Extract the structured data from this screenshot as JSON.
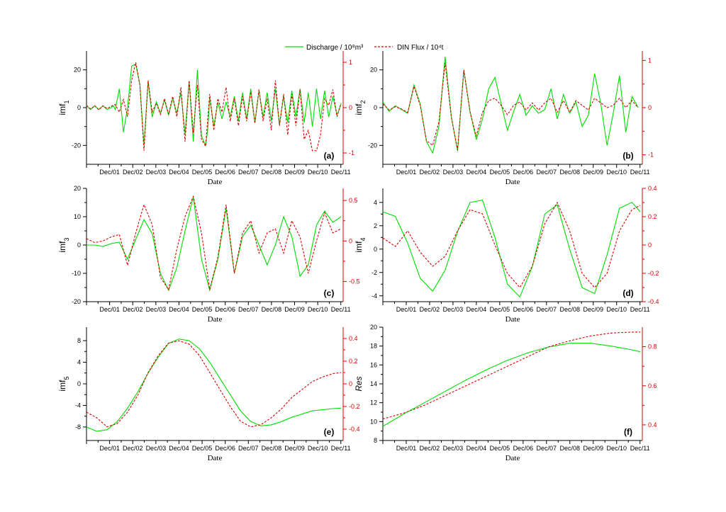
{
  "legend": {
    "discharge_label": "Discharge / 10⁸m³",
    "din_label": "DIN Flux / 10⁴t"
  },
  "colors": {
    "discharge": "#00dd00",
    "din": "#dd0000",
    "axis": "#000000"
  },
  "chart_data": [
    {
      "type": "line",
      "panel": "(a)",
      "ylabel": "imf₁",
      "xlabel": "Date",
      "x_ticks": [
        "Dec/01",
        "Dec/02",
        "Dec/03",
        "Dec/04",
        "Dec/05",
        "Dec/06",
        "Dec/07",
        "Dec/08",
        "Dec/09",
        "Dec/10",
        "Dec/11"
      ],
      "xlim": [
        0,
        125
      ],
      "ylim_left": [
        -30,
        30
      ],
      "ylim_right": [
        -1.25,
        1.25
      ],
      "yticks_left": [
        -20,
        0,
        20
      ],
      "yticks_right": [
        -1,
        0,
        1
      ],
      "series": [
        {
          "name": "Discharge / 10⁸m³",
          "axis": "left",
          "x": [
            0,
            2,
            4,
            6,
            8,
            10,
            12,
            13,
            14,
            16,
            18,
            20,
            22,
            24,
            26,
            28,
            30,
            32,
            34,
            36,
            38,
            40,
            42,
            44,
            46,
            48,
            50,
            52,
            54,
            56,
            58,
            59,
            60,
            62,
            64,
            66,
            68,
            70,
            72,
            74,
            76,
            78,
            80,
            82,
            84,
            86,
            88,
            90,
            92,
            94,
            96,
            98,
            100,
            102,
            104,
            106,
            108,
            110,
            112,
            114,
            116,
            118,
            120,
            122,
            124
          ],
          "y": [
            1,
            -1,
            1,
            -1,
            1,
            -1,
            0,
            1,
            -1,
            10,
            -13,
            0,
            22,
            23,
            12,
            -20,
            14,
            -5,
            3,
            -3,
            4,
            -4,
            5,
            -3,
            8,
            -14,
            14,
            -18,
            20,
            -15,
            -20,
            -12,
            5,
            -10,
            3,
            -6,
            3,
            -5,
            6,
            -7,
            8,
            -6,
            10,
            -8,
            9,
            -5,
            8,
            -7,
            10,
            -9,
            6,
            -8,
            9,
            -5,
            10,
            -8,
            8,
            -10,
            10,
            -6,
            9,
            -5,
            6,
            -4,
            2
          ]
        },
        {
          "name": "DIN Flux / 10⁴t",
          "axis": "right",
          "x": [
            0,
            2,
            4,
            6,
            8,
            10,
            12,
            14,
            16,
            18,
            20,
            22,
            24,
            26,
            28,
            30,
            32,
            34,
            36,
            38,
            40,
            42,
            44,
            46,
            48,
            50,
            52,
            54,
            56,
            58,
            60,
            62,
            64,
            66,
            68,
            70,
            72,
            74,
            76,
            78,
            80,
            82,
            84,
            86,
            88,
            90,
            92,
            94,
            96,
            98,
            100,
            102,
            104,
            106,
            108,
            110,
            112,
            114,
            116,
            118,
            120,
            122,
            124
          ],
          "y": [
            0.05,
            -0.03,
            0.04,
            -0.05,
            0.04,
            -0.02,
            0.03,
            0.07,
            -0.1,
            0.18,
            -0.2,
            0.6,
            1.0,
            0.5,
            -0.95,
            0.6,
            -0.1,
            0.1,
            -0.15,
            0.2,
            -0.15,
            0.25,
            -0.2,
            0.45,
            -0.75,
            0.6,
            -0.55,
            0.5,
            -0.7,
            -0.85,
            0.3,
            -0.5,
            0.2,
            -0.1,
            0.45,
            -0.3,
            0.2,
            -0.4,
            0.25,
            -0.3,
            0.35,
            -0.35,
            0.4,
            -0.3,
            0.2,
            -0.5,
            0.6,
            -0.4,
            0.3,
            -0.6,
            0.3,
            -0.4,
            0.4,
            -0.7,
            -0.5,
            -0.95,
            -0.95,
            -0.6,
            0.2,
            0.05,
            0.4,
            -0.2,
            0.1
          ]
        }
      ]
    },
    {
      "type": "line",
      "panel": "(b)",
      "ylabel": "imf₂",
      "xlabel": "Date",
      "x_ticks": [
        "Dec/01",
        "Dec/02",
        "Dec/03",
        "Dec/04",
        "Dec/05",
        "Dec/06",
        "Dec/07",
        "Dec/08",
        "Dec/09",
        "Dec/10",
        "Dec/11"
      ],
      "xlim": [
        0,
        125
      ],
      "ylim_left": [
        -30,
        30
      ],
      "ylim_right": [
        -1.2,
        1.2
      ],
      "yticks_left": [
        -20,
        0,
        20
      ],
      "yticks_right": [
        -1,
        0,
        1
      ],
      "series": [
        {
          "name": "Discharge / 10⁸m³",
          "axis": "left",
          "x": [
            0,
            3,
            6,
            9,
            12,
            15,
            18,
            21,
            24,
            27,
            30,
            33,
            36,
            39,
            42,
            45,
            48,
            51,
            54,
            57,
            60,
            63,
            66,
            69,
            72,
            75,
            78,
            81,
            84,
            87,
            90,
            93,
            96,
            99,
            102,
            105,
            108,
            111,
            114,
            117,
            120,
            123
          ],
          "y": [
            3,
            -2,
            1,
            -1,
            -3,
            12,
            2,
            -18,
            -24,
            -10,
            27,
            -5,
            -23,
            20,
            -2,
            -17,
            -6,
            10,
            16,
            2,
            -12,
            -2,
            7,
            -4,
            1,
            -3,
            -1,
            10,
            -6,
            7,
            -3,
            3,
            -10,
            -4,
            18,
            2,
            -20,
            -3,
            17,
            -13,
            6,
            0
          ]
        },
        {
          "name": "DIN Flux / 10⁴t",
          "axis": "right",
          "x": [
            0,
            3,
            6,
            9,
            12,
            15,
            18,
            21,
            24,
            27,
            30,
            33,
            36,
            39,
            42,
            45,
            48,
            51,
            54,
            57,
            60,
            63,
            66,
            69,
            72,
            75,
            78,
            81,
            84,
            87,
            90,
            93,
            96,
            99,
            102,
            105,
            108,
            111,
            114,
            117,
            120,
            123
          ],
          "y": [
            0.08,
            -0.05,
            0.02,
            -0.03,
            -0.1,
            0.45,
            0.05,
            -0.7,
            -0.8,
            -0.3,
            0.95,
            -0.2,
            -0.9,
            0.8,
            -0.1,
            -0.6,
            -0.1,
            0.15,
            0.2,
            0.05,
            -0.15,
            0.05,
            0.12,
            -0.05,
            0.1,
            -0.05,
            0.1,
            0.2,
            -0.1,
            0.15,
            -0.1,
            0.15,
            0.05,
            -0.05,
            0.2,
            0.1,
            0.0,
            0.05,
            0.2,
            0.0,
            0.15,
            0.0
          ]
        }
      ]
    },
    {
      "type": "line",
      "panel": "(c)",
      "ylabel": "imf₃",
      "xlabel": "Date",
      "x_ticks": [
        "Dec/01",
        "Dec/02",
        "Dec/03",
        "Dec/04",
        "Dec/05",
        "Dec/06",
        "Dec/07",
        "Dec/08",
        "Dec/09",
        "Dec/10",
        "Dec/11"
      ],
      "xlim": [
        0,
        125
      ],
      "ylim_left": [
        -20,
        20
      ],
      "ylim_right": [
        -0.75,
        0.65
      ],
      "yticks_left": [
        -20,
        -10,
        0,
        10,
        20
      ],
      "yticks_right": [
        -0.5,
        0,
        0.5
      ],
      "series": [
        {
          "name": "Discharge / 10⁸m³",
          "axis": "left",
          "x": [
            0,
            4,
            8,
            12,
            16,
            20,
            24,
            28,
            32,
            36,
            40,
            44,
            48,
            52,
            56,
            60,
            64,
            68,
            72,
            76,
            80,
            84,
            88,
            92,
            96,
            100,
            104,
            108,
            112,
            116,
            120,
            124
          ],
          "y": [
            0,
            0,
            -0.5,
            0.5,
            1,
            -5,
            2,
            9,
            4,
            -10,
            -16,
            -8,
            5,
            17,
            -5,
            -16,
            -5,
            13,
            -10,
            3,
            7,
            0,
            -7,
            0,
            10,
            3,
            -11,
            -7,
            7,
            12,
            8,
            10
          ]
        },
        {
          "name": "DIN Flux / 10⁴t",
          "axis": "right",
          "x": [
            0,
            4,
            8,
            12,
            16,
            20,
            24,
            28,
            32,
            36,
            40,
            44,
            48,
            52,
            56,
            60,
            64,
            68,
            72,
            76,
            80,
            84,
            88,
            92,
            96,
            100,
            104,
            108,
            112,
            116,
            120,
            124
          ],
          "y": [
            0.03,
            -0.02,
            0.0,
            0.05,
            0.08,
            -0.3,
            0.1,
            0.45,
            0.2,
            -0.45,
            -0.6,
            -0.1,
            0.3,
            0.55,
            0.1,
            -0.6,
            -0.2,
            0.45,
            -0.4,
            0.1,
            0.25,
            -0.15,
            0.1,
            0.15,
            -0.15,
            0.25,
            0.05,
            -0.4,
            0.0,
            0.35,
            0.1,
            0.15
          ]
        }
      ]
    },
    {
      "type": "line",
      "panel": "(d)",
      "ylabel": "imf₄",
      "xlabel": "Date",
      "x_ticks": [
        "Dec/01",
        "Dec/02",
        "Dec/03",
        "Dec/04",
        "Dec/05",
        "Dec/06",
        "Dec/07",
        "Dec/08",
        "Dec/09",
        "Dec/10",
        "Dec/11"
      ],
      "xlim": [
        0,
        125
      ],
      "ylim_left": [
        -4.5,
        5.2
      ],
      "ylim_right": [
        -0.4,
        0.4
      ],
      "yticks_left": [
        -4,
        -2,
        0,
        2,
        4
      ],
      "yticks_right": [
        -0.4,
        -0.2,
        0.0,
        0.2,
        0.4
      ],
      "series": [
        {
          "name": "Discharge / 10⁸m³",
          "axis": "left",
          "x": [
            0,
            6,
            12,
            18,
            24,
            30,
            36,
            42,
            48,
            54,
            60,
            66,
            72,
            78,
            84,
            90,
            96,
            102,
            108,
            114,
            120,
            124
          ],
          "y": [
            3.2,
            2.8,
            0.5,
            -2.5,
            -3.6,
            -1.8,
            1.5,
            4.0,
            4.2,
            1.0,
            -3.0,
            -4.1,
            -1.5,
            3.0,
            3.8,
            0.0,
            -3.3,
            -3.8,
            -0.5,
            3.5,
            4.0,
            3.2
          ]
        },
        {
          "name": "DIN Flux / 10⁴t",
          "axis": "right",
          "x": [
            0,
            6,
            12,
            18,
            24,
            30,
            36,
            42,
            48,
            54,
            60,
            66,
            72,
            78,
            84,
            90,
            96,
            102,
            108,
            114,
            120,
            124
          ],
          "y": [
            0.05,
            -0.01,
            0.1,
            -0.05,
            -0.15,
            -0.08,
            0.1,
            0.25,
            0.22,
            0.0,
            -0.2,
            -0.3,
            -0.15,
            0.15,
            0.3,
            0.1,
            -0.2,
            -0.3,
            -0.2,
            0.1,
            0.25,
            0.28
          ]
        }
      ]
    },
    {
      "type": "line",
      "panel": "(e)",
      "ylabel": "imf₅",
      "xlabel": "Date",
      "x_ticks": [
        "Dec/01",
        "Dec/02",
        "Dec/03",
        "Dec/04",
        "Dec/05",
        "Dec/06",
        "Dec/07",
        "Dec/08",
        "Dec/09",
        "Dec/10",
        "Dec/11"
      ],
      "xlim": [
        0,
        125
      ],
      "ylim_left": [
        -10.5,
        10.5
      ],
      "ylim_right": [
        -0.5,
        0.5
      ],
      "yticks_left": [
        -8,
        -4,
        0,
        4,
        8
      ],
      "yticks_right": [
        -0.4,
        -0.2,
        0.0,
        0.2,
        0.4
      ],
      "series": [
        {
          "name": "Discharge / 10⁸m³",
          "axis": "left",
          "x": [
            0,
            5,
            10,
            15,
            20,
            25,
            30,
            35,
            40,
            45,
            50,
            55,
            60,
            65,
            70,
            75,
            80,
            85,
            90,
            95,
            100,
            105,
            110,
            115,
            120,
            124
          ],
          "y": [
            -8,
            -8.8,
            -8.5,
            -7,
            -4.5,
            -1.5,
            2,
            5,
            7.5,
            8.3,
            8,
            6.5,
            4,
            1,
            -2,
            -5,
            -7,
            -7.8,
            -7.6,
            -7,
            -6.2,
            -5.6,
            -5,
            -4.8,
            -4.6,
            -4.5
          ]
        },
        {
          "name": "DIN Flux / 10⁴t",
          "axis": "right",
          "x": [
            0,
            5,
            10,
            15,
            20,
            25,
            30,
            35,
            40,
            45,
            50,
            55,
            60,
            65,
            70,
            75,
            80,
            85,
            90,
            95,
            100,
            105,
            110,
            115,
            120,
            124
          ],
          "y": [
            -0.25,
            -0.3,
            -0.38,
            -0.35,
            -0.25,
            -0.1,
            0.1,
            0.25,
            0.36,
            0.38,
            0.35,
            0.25,
            0.1,
            -0.05,
            -0.2,
            -0.33,
            -0.38,
            -0.36,
            -0.3,
            -0.22,
            -0.12,
            -0.05,
            0.02,
            0.06,
            0.09,
            0.1
          ]
        }
      ]
    },
    {
      "type": "line",
      "panel": "(f)",
      "ylabel": "Res",
      "xlabel": "Date",
      "x_ticks": [
        "Dec/01",
        "Dec/02",
        "Dec/03",
        "Dec/04",
        "Dec/05",
        "Dec/06",
        "Dec/07",
        "Dec/08",
        "Dec/09",
        "Dec/10",
        "Dec/11"
      ],
      "xlim": [
        0,
        125
      ],
      "ylim_left": [
        8,
        20
      ],
      "ylim_right": [
        0.32,
        0.9
      ],
      "yticks_left": [
        8,
        10,
        12,
        14,
        16,
        18,
        20
      ],
      "yticks_right": [
        0.4,
        0.6,
        0.8
      ],
      "series": [
        {
          "name": "Discharge / 10⁸m³",
          "axis": "left",
          "x": [
            0,
            10,
            20,
            30,
            40,
            50,
            60,
            70,
            80,
            90,
            100,
            110,
            120,
            124
          ],
          "y": [
            9.5,
            10.8,
            12,
            13.2,
            14.4,
            15.5,
            16.5,
            17.3,
            17.9,
            18.3,
            18.3,
            18.0,
            17.6,
            17.4
          ]
        },
        {
          "name": "DIN Flux / 10⁴t",
          "axis": "right",
          "x": [
            0,
            10,
            20,
            30,
            40,
            50,
            60,
            70,
            80,
            90,
            100,
            110,
            120,
            124
          ],
          "y": [
            0.43,
            0.46,
            0.5,
            0.55,
            0.6,
            0.65,
            0.7,
            0.75,
            0.8,
            0.83,
            0.855,
            0.87,
            0.875,
            0.875
          ]
        }
      ]
    }
  ]
}
